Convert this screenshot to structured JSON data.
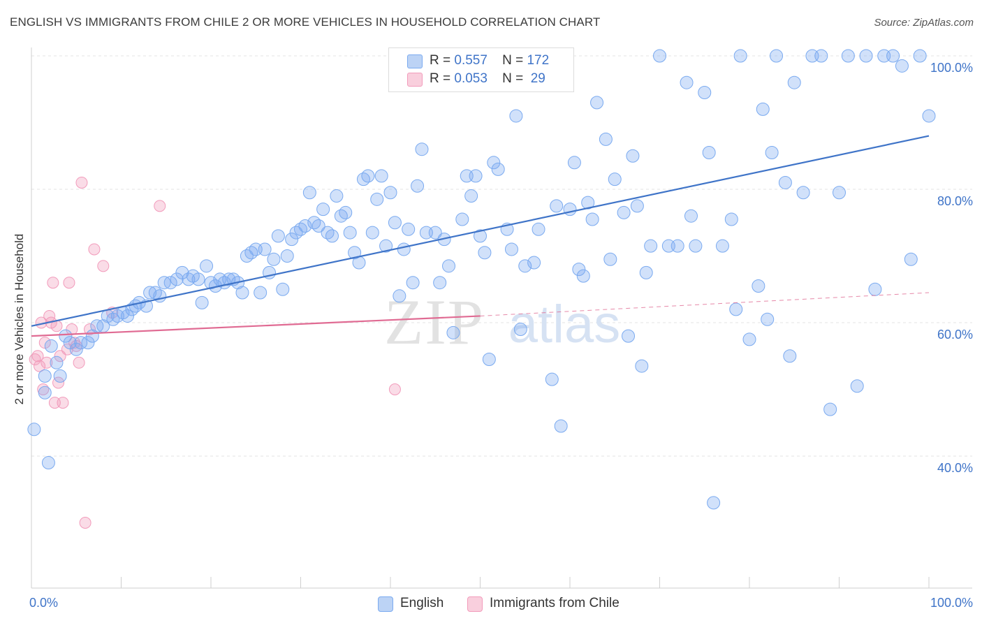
{
  "title": "ENGLISH VS IMMIGRANTS FROM CHILE 2 OR MORE VEHICLES IN HOUSEHOLD CORRELATION CHART",
  "source": "Source: ZipAtlas.com",
  "watermark": {
    "zip": "ZIP",
    "atlas": "atlas"
  },
  "legend_top": {
    "rows": [
      {
        "r_label": "R =",
        "r_value": "0.557",
        "n_label": "N =",
        "n_value": "172",
        "color": "#7aaaf0"
      },
      {
        "r_label": "R =",
        "r_value": "0.053",
        "n_label": "N =",
        "n_value": " 29",
        "color": "#f29bbb"
      }
    ]
  },
  "legend_bottom": {
    "english": "English",
    "chile": "Immigrants from Chile"
  },
  "chart_data": {
    "type": "scatter",
    "title": "ENGLISH VS IMMIGRANTS FROM CHILE 2 OR MORE VEHICLES IN HOUSEHOLD CORRELATION CHART",
    "xlabel": "",
    "ylabel": "2 or more Vehicles in Household",
    "xlim": [
      0,
      100
    ],
    "ylim": [
      20,
      102
    ],
    "x_tick_labels": [
      "0.0%",
      "100.0%"
    ],
    "y_ticks": [
      40,
      60,
      80,
      100
    ],
    "y_tick_labels": [
      "40.0%",
      "60.0%",
      "80.0%",
      "100.0%"
    ],
    "grid": true,
    "legend_position": "top-center",
    "colors": {
      "english": "#7aaaf0",
      "english_line": "#3f74c8",
      "chile": "#f29bbb",
      "chile_line": "#e06b93"
    },
    "series": [
      {
        "name": "English",
        "r": 0.557,
        "n": 172,
        "trend": {
          "x": [
            0,
            100
          ],
          "y": [
            59.5,
            88
          ]
        },
        "points": [
          [
            0.3,
            44
          ],
          [
            1.5,
            49.5
          ],
          [
            1.9,
            39
          ],
          [
            1.5,
            52
          ],
          [
            2.2,
            56.5
          ],
          [
            2.8,
            54
          ],
          [
            3.2,
            52
          ],
          [
            3.8,
            58
          ],
          [
            4.3,
            57
          ],
          [
            5,
            56
          ],
          [
            5.5,
            57
          ],
          [
            6.3,
            57
          ],
          [
            6.8,
            58
          ],
          [
            7.3,
            59.5
          ],
          [
            8,
            59.5
          ],
          [
            8.5,
            61
          ],
          [
            9.1,
            60.5
          ],
          [
            9.6,
            61
          ],
          [
            10.2,
            61.5
          ],
          [
            10.7,
            61
          ],
          [
            11.2,
            62
          ],
          [
            11.6,
            62.5
          ],
          [
            12,
            63
          ],
          [
            12.8,
            62.5
          ],
          [
            13.2,
            64.5
          ],
          [
            13.8,
            64.5
          ],
          [
            14.3,
            64
          ],
          [
            14.8,
            66
          ],
          [
            15.5,
            66
          ],
          [
            16.2,
            66.5
          ],
          [
            16.8,
            67.5
          ],
          [
            17.5,
            66.5
          ],
          [
            18,
            67
          ],
          [
            18.6,
            66.5
          ],
          [
            19,
            63
          ],
          [
            19.5,
            68.5
          ],
          [
            20,
            66
          ],
          [
            20.5,
            65.5
          ],
          [
            21,
            66.5
          ],
          [
            21.5,
            66
          ],
          [
            22,
            66.5
          ],
          [
            22.5,
            66.5
          ],
          [
            23,
            66
          ],
          [
            23.5,
            64.5
          ],
          [
            24,
            70
          ],
          [
            24.5,
            70.5
          ],
          [
            25,
            71
          ],
          [
            25.5,
            64.5
          ],
          [
            26,
            71
          ],
          [
            26.5,
            67.5
          ],
          [
            27,
            69.5
          ],
          [
            27.5,
            73
          ],
          [
            28,
            65
          ],
          [
            28.5,
            70
          ],
          [
            29,
            72.5
          ],
          [
            29.5,
            73.5
          ],
          [
            30,
            74
          ],
          [
            30.5,
            74.5
          ],
          [
            31,
            79.5
          ],
          [
            31.5,
            75
          ],
          [
            32,
            74.5
          ],
          [
            32.5,
            77
          ],
          [
            33,
            73.5
          ],
          [
            33.5,
            73
          ],
          [
            34,
            79
          ],
          [
            34.5,
            76
          ],
          [
            35,
            76.5
          ],
          [
            35.5,
            73.5
          ],
          [
            36,
            70.5
          ],
          [
            36.5,
            69
          ],
          [
            37,
            81.5
          ],
          [
            37.5,
            82
          ],
          [
            38,
            73.5
          ],
          [
            38.5,
            78.5
          ],
          [
            39,
            82
          ],
          [
            39.5,
            71.5
          ],
          [
            40,
            79.5
          ],
          [
            40.5,
            75
          ],
          [
            41,
            64
          ],
          [
            41.5,
            71
          ],
          [
            42,
            74
          ],
          [
            42.5,
            66
          ],
          [
            43,
            80.5
          ],
          [
            43.5,
            86
          ],
          [
            44,
            73.5
          ],
          [
            45,
            73.5
          ],
          [
            45.5,
            66
          ],
          [
            46,
            72.5
          ],
          [
            46.5,
            68.5
          ],
          [
            47,
            58.5
          ],
          [
            48,
            75.5
          ],
          [
            48.5,
            82
          ],
          [
            49,
            79
          ],
          [
            49.5,
            82
          ],
          [
            50,
            73
          ],
          [
            50.5,
            70.5
          ],
          [
            51,
            54.5
          ],
          [
            51.5,
            84
          ],
          [
            52,
            83
          ],
          [
            53,
            74
          ],
          [
            53.5,
            71
          ],
          [
            54,
            91
          ],
          [
            54.5,
            59
          ],
          [
            55,
            68.5
          ],
          [
            56,
            69
          ],
          [
            56.5,
            74
          ],
          [
            58,
            51.5
          ],
          [
            58.5,
            77.5
          ],
          [
            59,
            44.5
          ],
          [
            60,
            77
          ],
          [
            60.5,
            84
          ],
          [
            61,
            68
          ],
          [
            61.5,
            67
          ],
          [
            62,
            78
          ],
          [
            62.5,
            75.5
          ],
          [
            63,
            93
          ],
          [
            64,
            87.5
          ],
          [
            64.5,
            69.5
          ],
          [
            65,
            81.5
          ],
          [
            66,
            76.5
          ],
          [
            66.5,
            58
          ],
          [
            67,
            85
          ],
          [
            67.5,
            77.5
          ],
          [
            68,
            53.5
          ],
          [
            68.5,
            67.5
          ],
          [
            69,
            71.5
          ],
          [
            70,
            100
          ],
          [
            71,
            71.5
          ],
          [
            72,
            71.5
          ],
          [
            73,
            96
          ],
          [
            73.5,
            76
          ],
          [
            74,
            71.5
          ],
          [
            75,
            94.5
          ],
          [
            75.5,
            85.5
          ],
          [
            76,
            33
          ],
          [
            77,
            71.5
          ],
          [
            78,
            75.5
          ],
          [
            78.5,
            62
          ],
          [
            79,
            100
          ],
          [
            80,
            57.5
          ],
          [
            81,
            65.5
          ],
          [
            81.5,
            92
          ],
          [
            82,
            60.5
          ],
          [
            82.5,
            85.5
          ],
          [
            83,
            100
          ],
          [
            84,
            81
          ],
          [
            84.5,
            55
          ],
          [
            85,
            96
          ],
          [
            86,
            79.5
          ],
          [
            87,
            100
          ],
          [
            88,
            100
          ],
          [
            89,
            47
          ],
          [
            90,
            79.5
          ],
          [
            91,
            100
          ],
          [
            92,
            50.5
          ],
          [
            93,
            100
          ],
          [
            94,
            65
          ],
          [
            95,
            100
          ],
          [
            96,
            100
          ],
          [
            97,
            98.5
          ],
          [
            98,
            69.5
          ],
          [
            99,
            100
          ],
          [
            100,
            91
          ]
        ]
      },
      {
        "name": "Immigrants from Chile",
        "r": 0.053,
        "n": 29,
        "trend": {
          "x": [
            0,
            50
          ],
          "y": [
            58,
            61
          ]
        },
        "trend_extension": {
          "x": [
            50,
            100
          ],
          "y": [
            61,
            64.5
          ]
        },
        "points": [
          [
            0.4,
            54.5
          ],
          [
            0.7,
            55
          ],
          [
            0.9,
            53.5
          ],
          [
            1.1,
            60
          ],
          [
            1.3,
            50
          ],
          [
            1.5,
            57
          ],
          [
            1.7,
            54
          ],
          [
            2,
            61
          ],
          [
            2.2,
            60
          ],
          [
            2.4,
            66
          ],
          [
            2.6,
            48
          ],
          [
            2.8,
            59.5
          ],
          [
            3,
            51
          ],
          [
            3.2,
            55
          ],
          [
            3.5,
            48
          ],
          [
            4,
            56
          ],
          [
            4.2,
            66
          ],
          [
            4.5,
            59
          ],
          [
            4.8,
            57
          ],
          [
            5,
            56.5
          ],
          [
            5.3,
            54
          ],
          [
            5.6,
            81
          ],
          [
            6,
            30
          ],
          [
            6.5,
            59
          ],
          [
            7,
            71
          ],
          [
            8,
            68.5
          ],
          [
            9,
            61.5
          ],
          [
            14.3,
            77.5
          ],
          [
            40.5,
            50
          ]
        ]
      }
    ]
  }
}
